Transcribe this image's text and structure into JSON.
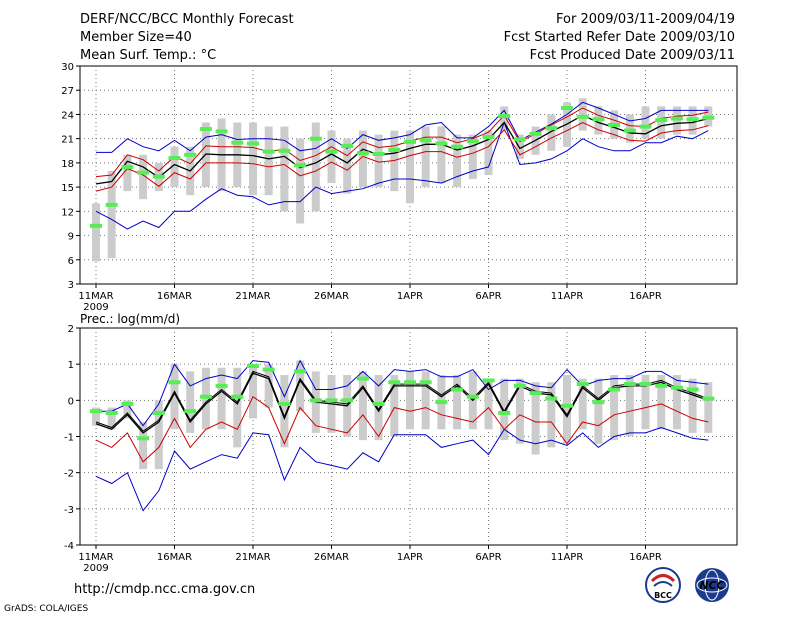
{
  "header": {
    "title": "DERF/NCC/BCC Monthly Forecast",
    "member_size": "Member Size=40",
    "variable": "Mean Surf. Temp.: °C",
    "period": "For 2009/03/11-2009/04/19",
    "started": "Fcst Started Refer Date 2009/03/10",
    "produced": "Fcst Produced Date 2009/03/11"
  },
  "footer": {
    "url": "http://cmdp.ncc.cma.gov.cn",
    "credit": "GrADS: COLA/IGES",
    "logo_bcc": "BCC",
    "logo_ncc": "NCC"
  },
  "colors": {
    "box": "#cccccc",
    "median": "#55ee55",
    "bounds": "#0000cc",
    "mean": "#000000",
    "second": "#cc0000",
    "grid": "#777777"
  },
  "chart_data": [
    {
      "type": "line",
      "panel": "temperature",
      "title": "Mean Surf. Temp.: °C",
      "x_tick_labels": [
        "11MAR",
        "16MAR",
        "21MAR",
        "26MAR",
        "1APR",
        "6APR",
        "11APR",
        "16APR"
      ],
      "x_tick_days": [
        1,
        6,
        11,
        16,
        21,
        26,
        31,
        36
      ],
      "x_year_label": "2009",
      "ylim": [
        3,
        30
      ],
      "y_ticks": [
        3,
        6,
        9,
        12,
        15,
        18,
        21,
        24,
        27,
        30
      ],
      "days": [
        1,
        2,
        3,
        4,
        5,
        6,
        7,
        8,
        9,
        10,
        11,
        12,
        13,
        14,
        15,
        16,
        17,
        18,
        19,
        20,
        21,
        22,
        23,
        24,
        25,
        26,
        27,
        28,
        29,
        30,
        31,
        32,
        33,
        34,
        35,
        36,
        37,
        38,
        39,
        40
      ],
      "series": [
        {
          "name": "upper",
          "color": "#0000cc",
          "values": [
            19.3,
            19.3,
            21,
            20,
            19.5,
            20.8,
            19.5,
            21.2,
            21.5,
            20.9,
            21,
            21,
            20.8,
            19.5,
            19.8,
            21,
            19.8,
            21.5,
            20.8,
            21.1,
            21.5,
            22.7,
            23,
            21.1,
            21.1,
            22.5,
            24.5,
            20.8,
            21.8,
            22.8,
            24,
            25.5,
            24.8,
            24,
            23.2,
            23.5,
            24.5,
            24.5,
            24.5,
            24.5
          ]
        },
        {
          "name": "box_top",
          "color": "#cccccc",
          "values": [
            13,
            17,
            19,
            19,
            18,
            20,
            20,
            23,
            23.5,
            23,
            23,
            22.5,
            22.5,
            21,
            23,
            22,
            21,
            22,
            21.5,
            22,
            22,
            22.5,
            22.5,
            21.5,
            21.5,
            22,
            25,
            21.5,
            22.5,
            24,
            25.5,
            26,
            25,
            24.5,
            24,
            25,
            25,
            25,
            25,
            25
          ]
        },
        {
          "name": "median",
          "color": "#55ee55",
          "values": [
            10.2,
            12.8,
            17.5,
            16.8,
            16.3,
            18.6,
            19,
            22.2,
            21.9,
            20.5,
            20.4,
            19.4,
            19.5,
            17.7,
            21,
            19.4,
            20.1,
            19.2,
            19.1,
            19.6,
            20.6,
            20.8,
            20.4,
            20,
            20.7,
            21.2,
            23.8,
            20.9,
            21.6,
            22.3,
            24.8,
            23.7,
            23.4,
            22.7,
            22,
            22.5,
            23.3,
            23.5,
            23.4,
            23.6
          ]
        },
        {
          "name": "mean",
          "color": "#000000",
          "values": [
            15.4,
            15.7,
            18.2,
            17.5,
            16.2,
            17.8,
            17,
            19.1,
            19,
            19,
            18.9,
            18.5,
            18.8,
            17.4,
            18,
            19.1,
            18,
            19.7,
            19,
            19.2,
            19.8,
            20.3,
            20.3,
            19.6,
            20.1,
            20.9,
            23,
            19.8,
            20.8,
            21.9,
            22.8,
            23.9,
            23,
            22.4,
            21.7,
            21.6,
            22.6,
            22.9,
            23,
            23.5
          ]
        },
        {
          "name": "second",
          "color": "#cc0000",
          "values": [
            16.3,
            16.5,
            19,
            18.4,
            17,
            18.8,
            17.9,
            20.1,
            20,
            20,
            19.9,
            19.4,
            19.7,
            18.3,
            18.9,
            20,
            18.9,
            20.6,
            19.9,
            20.1,
            20.7,
            21.2,
            21.2,
            20.5,
            21,
            21.8,
            23.9,
            20.6,
            21.6,
            22.7,
            23.7,
            24.8,
            23.9,
            23.3,
            22.6,
            22.5,
            23.5,
            23.8,
            23.9,
            24.3
          ]
        },
        {
          "name": "third",
          "color": "#cc0000",
          "values": [
            14.5,
            15,
            17.3,
            16.5,
            15.1,
            16.8,
            16,
            18,
            18,
            18,
            17.9,
            17.5,
            17.8,
            16.4,
            17,
            18.1,
            17.1,
            18.8,
            18.1,
            18.3,
            18.9,
            19.4,
            19.4,
            18.7,
            19.2,
            20,
            22.1,
            19,
            20,
            21.1,
            22,
            23,
            22.1,
            21.5,
            20.8,
            20.7,
            21.7,
            22,
            22.1,
            22.6
          ]
        },
        {
          "name": "lower",
          "color": "#0000cc",
          "values": [
            12,
            11,
            9.8,
            10.8,
            10,
            12,
            12,
            13.5,
            14.8,
            14,
            13.8,
            12.8,
            13.2,
            13.2,
            15,
            14.2,
            14.5,
            14.8,
            15.5,
            16,
            16,
            15.8,
            15.5,
            16.3,
            17,
            17.5,
            23,
            17.8,
            18,
            18.5,
            19.5,
            21,
            20,
            19.5,
            19.5,
            20.5,
            20.5,
            21.3,
            21,
            22
          ]
        },
        {
          "name": "box_bottom",
          "color": "#cccccc",
          "values": [
            5.8,
            6.2,
            14.5,
            13.5,
            14.5,
            15,
            14,
            15,
            14.5,
            15,
            14,
            14,
            12,
            10.5,
            12,
            15.5,
            14.2,
            15,
            15,
            14.5,
            13,
            15,
            15.5,
            15,
            16,
            16.5,
            22,
            18.5,
            19,
            19.5,
            20,
            22,
            21.5,
            21,
            20.5,
            21,
            21,
            21.5,
            21.5,
            22.5
          ]
        }
      ]
    },
    {
      "type": "line",
      "panel": "precipitation",
      "title": "Prec.: log(mm/d)",
      "x_tick_labels": [
        "11MAR",
        "16MAR",
        "21MAR",
        "26MAR",
        "1APR",
        "6APR",
        "11APR",
        "16APR"
      ],
      "x_tick_days": [
        1,
        6,
        11,
        16,
        21,
        26,
        31,
        36
      ],
      "x_year_label": "2009",
      "ylim": [
        -4,
        2
      ],
      "y_ticks": [
        -4,
        -3,
        -2,
        -1,
        0,
        1,
        2
      ],
      "days": [
        1,
        2,
        3,
        4,
        5,
        6,
        7,
        8,
        9,
        10,
        11,
        12,
        13,
        14,
        15,
        16,
        17,
        18,
        19,
        20,
        21,
        22,
        23,
        24,
        25,
        26,
        27,
        28,
        29,
        30,
        31,
        32,
        33,
        34,
        35,
        36,
        37,
        38,
        39,
        40
      ],
      "series": [
        {
          "name": "upper",
          "color": "#0000cc",
          "values": [
            -0.3,
            -0.3,
            -0.1,
            -0.7,
            -0.1,
            1,
            0.4,
            0.6,
            0.7,
            0.6,
            1.1,
            1.05,
            0.1,
            1.1,
            0.3,
            0.3,
            0.4,
            0.8,
            0.4,
            0.85,
            0.8,
            0.85,
            0.65,
            0.65,
            0.85,
            0.3,
            0.55,
            0.55,
            0.4,
            0.35,
            0.85,
            0.4,
            0.55,
            0.6,
            0.6,
            0.8,
            0.8,
            0.55,
            0.5,
            0.45
          ]
        },
        {
          "name": "box_top",
          "color": "#cccccc",
          "values": [
            -0.2,
            -0.2,
            0,
            -0.6,
            0,
            1,
            0.8,
            0.9,
            0.9,
            0.9,
            1,
            1,
            0.7,
            1.1,
            0.8,
            0.7,
            0.7,
            0.8,
            0.7,
            0.7,
            0.8,
            0.8,
            0.7,
            0.7,
            0.8,
            0.6,
            0.6,
            0.6,
            0.5,
            0.5,
            0.7,
            0.6,
            0.6,
            0.7,
            0.7,
            0.7,
            0.7,
            0.7,
            0.6,
            0.5
          ]
        },
        {
          "name": "median",
          "color": "#55ee55",
          "values": [
            -0.3,
            -0.35,
            -0.1,
            -1.05,
            -0.35,
            0.5,
            -0.3,
            0.1,
            0.4,
            0.1,
            0.95,
            0.85,
            -0.1,
            0.8,
            0,
            0,
            0,
            0.6,
            -0.1,
            0.5,
            0.5,
            0.5,
            -0.05,
            0.3,
            0.1,
            0.55,
            -0.35,
            0.4,
            0.2,
            0.05,
            -0.15,
            0.45,
            -0.05,
            0.3,
            0.45,
            0.45,
            0.4,
            0.35,
            0.3,
            0.05
          ]
        },
        {
          "name": "mean",
          "color": "#000000",
          "values": [
            -0.65,
            -0.8,
            -0.4,
            -0.9,
            -0.6,
            0.2,
            -0.6,
            -0.1,
            0.25,
            -0.1,
            0.75,
            0.6,
            -0.5,
            0.55,
            -0.05,
            -0.1,
            -0.15,
            0.35,
            -0.3,
            0.4,
            0.4,
            0.4,
            0.1,
            0.4,
            0,
            0.45,
            -0.35,
            0.4,
            0.2,
            0.15,
            -0.45,
            0.35,
            0,
            0.35,
            0.4,
            0.4,
            0.5,
            0.3,
            0.15,
            0
          ]
        },
        {
          "name": "second",
          "color": "#000000",
          "values": [
            -0.6,
            -0.75,
            -0.35,
            -0.85,
            -0.55,
            0.25,
            -0.55,
            -0.05,
            0.3,
            -0.05,
            0.8,
            0.65,
            -0.45,
            0.6,
            0,
            -0.05,
            -0.1,
            0.4,
            -0.25,
            0.45,
            0.45,
            0.45,
            0.15,
            0.45,
            0.05,
            0.5,
            -0.3,
            0.45,
            0.25,
            0.2,
            -0.4,
            0.4,
            0.05,
            0.4,
            0.45,
            0.45,
            0.55,
            0.35,
            0.2,
            0.05
          ]
        },
        {
          "name": "third",
          "color": "#cc0000",
          "values": [
            -1.1,
            -1.3,
            -0.9,
            -1.7,
            -1.3,
            -0.5,
            -1.3,
            -0.8,
            -0.6,
            -0.8,
            0.1,
            -0.2,
            -1.2,
            -0.2,
            -0.7,
            -0.8,
            -0.9,
            -0.4,
            -1,
            -0.2,
            -0.3,
            -0.2,
            -0.4,
            -0.5,
            -0.6,
            -0.2,
            -0.8,
            -0.4,
            -0.6,
            -0.6,
            -1.2,
            -0.6,
            -0.7,
            -0.4,
            -0.3,
            -0.2,
            -0.1,
            -0.3,
            -0.5,
            -0.6
          ]
        },
        {
          "name": "lower",
          "color": "#0000cc",
          "values": [
            -2.1,
            -2.3,
            -2,
            -3.05,
            -2.5,
            -1.4,
            -1.9,
            -1.7,
            -1.5,
            -1.6,
            -0.9,
            -0.95,
            -2.2,
            -1.3,
            -1.7,
            -1.8,
            -1.9,
            -1.45,
            -1.7,
            -0.95,
            -0.95,
            -0.95,
            -1.3,
            -1.2,
            -1.1,
            -1.5,
            -0.8,
            -1.1,
            -1.2,
            -1.1,
            -1.25,
            -0.9,
            -1.3,
            -1,
            -0.9,
            -0.9,
            -0.75,
            -0.9,
            -1.05,
            -1.1
          ]
        },
        {
          "name": "box_bottom",
          "color": "#cccccc",
          "values": [
            -0.7,
            -0.8,
            -0.5,
            -1.9,
            -1.9,
            -0.8,
            -0.9,
            -0.8,
            -0.8,
            -1.3,
            -0.5,
            -0.2,
            -1.3,
            -0.3,
            -0.9,
            -0.9,
            -1,
            -1.1,
            -1.1,
            -1,
            -0.8,
            -0.8,
            -0.8,
            -0.8,
            -0.8,
            -0.8,
            -1.1,
            -1.2,
            -1.5,
            -1.3,
            -1.2,
            -0.8,
            -1.2,
            -1.1,
            -1,
            -0.8,
            -0.8,
            -0.8,
            -0.9,
            -0.9
          ]
        }
      ]
    }
  ]
}
